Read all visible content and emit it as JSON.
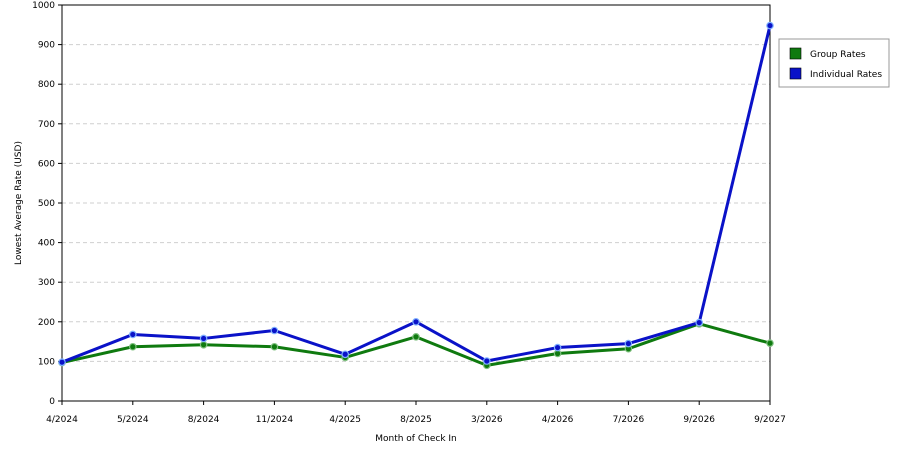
{
  "chart_data": {
    "type": "line",
    "xlabel": "Month of Check In",
    "ylabel": "Lowest Average Rate (USD)",
    "ylim": [
      0,
      1000
    ],
    "yticks": [
      0,
      100,
      200,
      300,
      400,
      500,
      600,
      700,
      800,
      900,
      1000
    ],
    "grid": "horizontal dashed",
    "legend_position": "right",
    "categories": [
      "4/2024",
      "5/2024",
      "8/2024",
      "11/2024",
      "4/2025",
      "8/2025",
      "3/2026",
      "4/2026",
      "7/2026",
      "9/2026",
      "9/2027"
    ],
    "series": [
      {
        "name": "Group Rates",
        "color": "#0f7a0f",
        "values": [
          97,
          137,
          142,
          137,
          110,
          162,
          90,
          120,
          132,
          195,
          146
        ]
      },
      {
        "name": "Individual Rates",
        "color": "#0a12c8",
        "values": [
          98,
          168,
          158,
          178,
          118,
          200,
          101,
          135,
          145,
          198,
          948
        ]
      }
    ]
  }
}
